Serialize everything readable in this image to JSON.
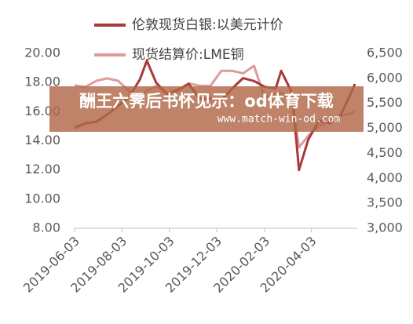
{
  "chart_data": {
    "type": "line",
    "legend": "top",
    "x": [
      "2019-06-03",
      "2019-06-17",
      "2019-07-01",
      "2019-07-15",
      "2019-07-29",
      "2019-08-12",
      "2019-08-26",
      "2019-09-04",
      "2019-09-16",
      "2019-09-30",
      "2019-10-14",
      "2019-10-28",
      "2019-11-11",
      "2019-11-25",
      "2019-12-09",
      "2019-12-23",
      "2020-01-06",
      "2020-01-20",
      "2020-02-03",
      "2020-02-17",
      "2020-02-24",
      "2020-03-09",
      "2020-03-18",
      "2020-03-30",
      "2020-04-13",
      "2020-04-27",
      "2020-05-11",
      "2020-05-25",
      "2020-05-29"
    ],
    "series": [
      {
        "name": "伦敦现货白银:以美元计价",
        "color": "#a83a3a",
        "values": [
          14.9,
          15.2,
          15.3,
          15.8,
          16.4,
          17.0,
          18.2,
          19.5,
          18.0,
          17.2,
          17.5,
          17.9,
          16.9,
          16.9,
          16.8,
          17.6,
          18.3,
          18.1,
          17.7,
          17.6,
          18.8,
          17.3,
          12.0,
          14.1,
          15.4,
          15.2,
          15.8,
          17.4,
          17.9
        ]
      },
      {
        "name": "现货结算价:LME铜",
        "color": "#dc9c9c",
        "axis": "y2",
        "values": [
          5860,
          5830,
          5950,
          6000,
          5950,
          5750,
          5650,
          5750,
          5850,
          5700,
          5750,
          5900,
          5850,
          5850,
          6150,
          6150,
          6100,
          6250,
          5600,
          5700,
          5700,
          5600,
          4620,
          4850,
          5050,
          5150,
          5250,
          5300,
          5350
        ]
      }
    ],
    "xlim": [
      "2019-06-03",
      "2020-06-01"
    ],
    "xticks": [
      "2019-06-03",
      "2019-08-03",
      "2019-10-03",
      "2019-12-03",
      "2020-02-03",
      "2020-04-03"
    ],
    "ylim": [
      8,
      20
    ],
    "yticks": [
      {
        "value": 8,
        "label": "8.00"
      },
      {
        "value": 10,
        "label": "10.00"
      },
      {
        "value": 12,
        "label": "12.00"
      },
      {
        "value": 14,
        "label": "14.00"
      },
      {
        "value": 16,
        "label": "16.00"
      },
      {
        "value": 18,
        "label": "18.00"
      },
      {
        "value": 20,
        "label": "20.00"
      }
    ],
    "y2lim": [
      3000,
      6500
    ],
    "y2ticks": [
      {
        "value": 3000,
        "label": "3,000"
      },
      {
        "value": 3500,
        "label": "3,500"
      },
      {
        "value": 4000,
        "label": "4,000"
      },
      {
        "value": 4500,
        "label": "4,500"
      },
      {
        "value": 5000,
        "label": "5,000"
      },
      {
        "value": 5500,
        "label": "5,500"
      },
      {
        "value": 6000,
        "label": "6,000"
      },
      {
        "value": 6500,
        "label": "6,500"
      }
    ],
    "watermark": {
      "text": "酬王六霁后书怀见示：od体育下载",
      "url": "www.match-win-od.com"
    }
  }
}
